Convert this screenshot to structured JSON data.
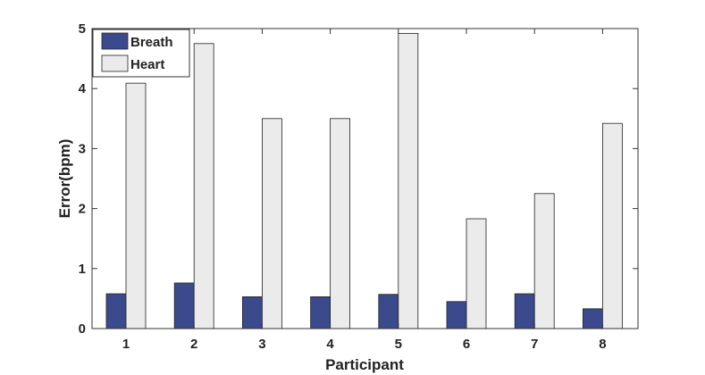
{
  "chart_data": {
    "type": "bar",
    "categories": [
      "1",
      "2",
      "3",
      "4",
      "5",
      "6",
      "7",
      "8"
    ],
    "series": [
      {
        "name": "Breath",
        "color": "#3b4a8c",
        "values": [
          0.58,
          0.76,
          0.53,
          0.53,
          0.57,
          0.45,
          0.58,
          0.33
        ]
      },
      {
        "name": "Heart",
        "color": "#ebebeb",
        "values": [
          4.09,
          4.75,
          3.5,
          3.5,
          4.92,
          1.83,
          2.25,
          3.42
        ]
      }
    ],
    "xlabel": "Participant",
    "ylabel": "Error(bpm)",
    "ylim": [
      0,
      5
    ],
    "yticks": [
      "0",
      "1",
      "2",
      "3",
      "4",
      "5"
    ],
    "legend_position": "top-left",
    "grid": false
  }
}
